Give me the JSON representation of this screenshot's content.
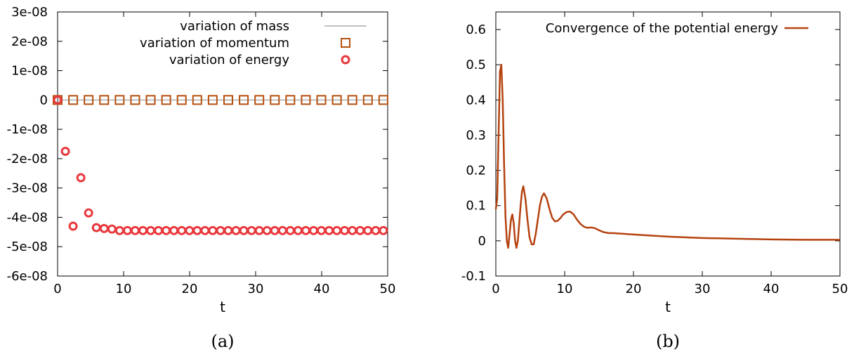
{
  "chart_data": [
    {
      "type": "scatter",
      "caption": "(a)",
      "xlabel": "t",
      "ylabel": "",
      "xlim": [
        0,
        50
      ],
      "ylim": [
        -6e-08,
        3e-08
      ],
      "x_ticks": [
        0,
        10,
        20,
        30,
        40,
        50
      ],
      "x_tick_labels": [
        "0",
        "10",
        "20",
        "30",
        "40",
        "50"
      ],
      "y_ticks": [
        3e-08,
        2e-08,
        1e-08,
        0,
        -1e-08,
        -2e-08,
        -3e-08,
        -4e-08,
        -5e-08,
        -6e-08
      ],
      "y_tick_labels": [
        "3e-08",
        "2e-08",
        "1e-08",
        "0",
        "-1e-08",
        "-2e-08",
        "-3e-08",
        "-4e-08",
        "-5e-08",
        "-6e-08"
      ],
      "grid": false,
      "legend_position": "top-right",
      "series": [
        {
          "name": "variation of mass",
          "style": "line",
          "color": "#c0c0c0",
          "x": [
            0,
            50
          ],
          "y": [
            0,
            0
          ]
        },
        {
          "name": "variation of momentum",
          "style": "open-square",
          "color": "#b5500f",
          "x": [
            0,
            2.35,
            4.7,
            7.05,
            9.4,
            11.75,
            14.1,
            16.45,
            18.8,
            21.15,
            23.5,
            25.85,
            28.2,
            30.55,
            32.9,
            35.25,
            37.6,
            39.95,
            42.3,
            44.65,
            47.0,
            49.35
          ],
          "y": [
            0,
            0,
            0,
            0,
            0,
            0,
            0,
            0,
            0,
            0,
            0,
            0,
            0,
            0,
            0,
            0,
            0,
            0,
            0,
            0,
            0,
            0
          ]
        },
        {
          "name": "variation of energy",
          "style": "open-circle",
          "color": "#e8383c",
          "x": [
            0,
            1.18,
            2.35,
            3.53,
            4.7,
            5.88,
            7.05,
            8.23,
            9.4,
            10.58,
            11.75,
            12.93,
            14.1,
            15.28,
            16.45,
            17.63,
            18.8,
            19.98,
            21.15,
            22.33,
            23.5,
            24.68,
            25.85,
            27.03,
            28.2,
            29.38,
            30.55,
            31.73,
            32.9,
            34.08,
            35.25,
            36.43,
            37.6,
            38.78,
            39.95,
            41.13,
            42.3,
            43.48,
            44.65,
            45.83,
            47.0,
            48.18,
            49.35
          ],
          "y": [
            0,
            -1.75e-08,
            -4.3e-08,
            -2.65e-08,
            -3.85e-08,
            -4.35e-08,
            -4.38e-08,
            -4.4e-08,
            -4.45e-08,
            -4.45e-08,
            -4.45e-08,
            -4.45e-08,
            -4.45e-08,
            -4.45e-08,
            -4.45e-08,
            -4.45e-08,
            -4.45e-08,
            -4.45e-08,
            -4.45e-08,
            -4.45e-08,
            -4.45e-08,
            -4.45e-08,
            -4.45e-08,
            -4.45e-08,
            -4.45e-08,
            -4.45e-08,
            -4.45e-08,
            -4.45e-08,
            -4.45e-08,
            -4.45e-08,
            -4.45e-08,
            -4.45e-08,
            -4.45e-08,
            -4.45e-08,
            -4.45e-08,
            -4.45e-08,
            -4.45e-08,
            -4.45e-08,
            -4.45e-08,
            -4.45e-08,
            -4.45e-08,
            -4.45e-08,
            -4.45e-08
          ]
        }
      ]
    },
    {
      "type": "line",
      "caption": "(b)",
      "xlabel": "t",
      "ylabel": "",
      "xlim": [
        0,
        50
      ],
      "ylim": [
        -0.1,
        0.65
      ],
      "x_ticks": [
        0,
        10,
        20,
        30,
        40,
        50
      ],
      "x_tick_labels": [
        "0",
        "10",
        "20",
        "30",
        "40",
        "50"
      ],
      "y_ticks": [
        0.6,
        0.5,
        0.4,
        0.3,
        0.2,
        0.1,
        0,
        -0.1
      ],
      "y_tick_labels": [
        "0.6",
        "0.5",
        "0.4",
        "0.3",
        "0.2",
        "0.1",
        "0",
        "-0.1"
      ],
      "grid": false,
      "legend_position": "top-right",
      "series": [
        {
          "name": "Convergence of the potential energy",
          "color": "#b5420f",
          "x": [
            0,
            0.2,
            0.4,
            0.6,
            0.8,
            1.0,
            1.2,
            1.4,
            1.6,
            1.8,
            2.0,
            2.2,
            2.4,
            2.6,
            2.8,
            3.0,
            3.2,
            3.4,
            3.6,
            3.8,
            4.0,
            4.3,
            4.6,
            4.9,
            5.2,
            5.5,
            5.8,
            6.1,
            6.4,
            6.7,
            7.0,
            7.4,
            7.8,
            8.2,
            8.6,
            9.0,
            9.4,
            9.8,
            10.3,
            10.8,
            11.3,
            11.8,
            12.3,
            12.8,
            13.3,
            13.8,
            14.4,
            15.0,
            15.6,
            16.4,
            17.0,
            20.0,
            25.0,
            30.0,
            35.0,
            40.0,
            45.0,
            50.0
          ],
          "y": [
            0.09,
            0.12,
            0.3,
            0.48,
            0.5,
            0.4,
            0.22,
            0.07,
            0.0,
            -0.02,
            0.02,
            0.06,
            0.075,
            0.05,
            0.0,
            -0.02,
            0.0,
            0.05,
            0.1,
            0.14,
            0.155,
            0.12,
            0.06,
            0.01,
            -0.01,
            -0.01,
            0.02,
            0.06,
            0.1,
            0.125,
            0.135,
            0.12,
            0.09,
            0.065,
            0.055,
            0.057,
            0.065,
            0.075,
            0.082,
            0.083,
            0.075,
            0.06,
            0.048,
            0.04,
            0.037,
            0.038,
            0.036,
            0.03,
            0.025,
            0.022,
            0.022,
            0.018,
            0.012,
            0.008,
            0.006,
            0.004,
            0.003,
            0.003
          ]
        }
      ]
    }
  ]
}
